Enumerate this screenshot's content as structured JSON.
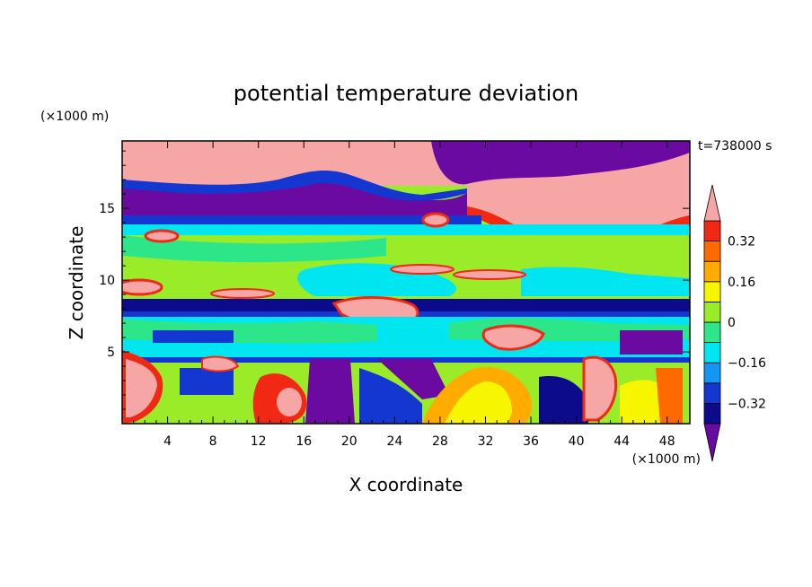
{
  "chart_data": {
    "type": "heatmap",
    "title": "potential temperature deviation",
    "time_label": "t=738000 s",
    "xlabel": "X coordinate",
    "ylabel": "Z coordinate",
    "x_unit": "(×1000 m)",
    "y_unit": "(×1000 m)",
    "xlim": [
      0,
      50
    ],
    "ylim": [
      0,
      19.7
    ],
    "x_ticks": [
      4,
      8,
      12,
      16,
      20,
      24,
      28,
      32,
      36,
      40,
      44,
      48
    ],
    "y_ticks": [
      5,
      10,
      15
    ],
    "colorbar": {
      "levels": [
        -0.4,
        -0.32,
        -0.24,
        -0.16,
        -0.08,
        0,
        0.08,
        0.16,
        0.24,
        0.32,
        0.4
      ],
      "tick_labels": [
        "0.32",
        "0.16",
        "0",
        "−0.16",
        "−0.32"
      ],
      "tick_values": [
        0.32,
        0.16,
        0,
        -0.16,
        -0.32
      ],
      "colors": [
        "#6a0aa0",
        "#0b0b8c",
        "#1437d2",
        "#1496f5",
        "#00e6f0",
        "#2ee68a",
        "#9aeb28",
        "#f8f500",
        "#ffab00",
        "#ff6a00",
        "#f02814",
        "#f7a6a6"
      ],
      "extend": "both"
    },
    "bands": [
      {
        "z_range": [
          17.7,
          19.7
        ],
        "dominant": "above 0.4 (west), below -0.4 (east)"
      },
      {
        "z_range": [
          14.0,
          17.5
        ],
        "dominant": "below -0.4 (west), above 0.4 (east)"
      },
      {
        "z_range": [
          9.5,
          13.5
        ],
        "dominant": "0 to 0.16"
      },
      {
        "z_range": [
          7.5,
          9.0
        ],
        "dominant": "-0.32 to -0.4"
      },
      {
        "z_range": [
          5.0,
          7.5
        ],
        "dominant": "-0.16 to 0.08"
      },
      {
        "z_range": [
          0.0,
          4.5
        ],
        "dominant": "mixed, -0.4 to above 0.4"
      }
    ]
  }
}
